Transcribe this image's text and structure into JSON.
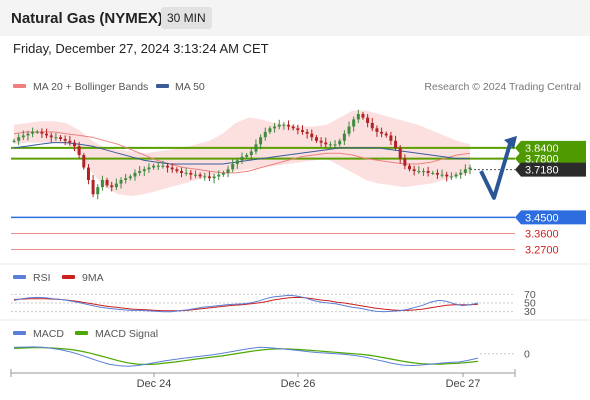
{
  "header": {
    "title": "Natural Gas (NYMEX)",
    "timeframe": "30 MIN",
    "datetime": "Friday, December 27, 2024 3:13:24 AM CET"
  },
  "legend": {
    "ma20_label": "MA 20 + Bollinger Bands",
    "ma50_label": "MA 50",
    "credit": "Research © 2024 Trading Central"
  },
  "colors": {
    "ma20": "#f08080",
    "band_fill": "#fcdada",
    "ma50": "#3a5b9a",
    "resistance": "#5a9e00",
    "support": "#2d6de0",
    "weak_support": "#e06060",
    "current": "#333333",
    "arrow": "#2a5596",
    "up_candle": "#3d8b3d",
    "down_candle": "#b22222",
    "rsi": "#5b7fd6",
    "rsi_ma": "#cc1f1f",
    "macd": "#5b7fd6",
    "macd_signal": "#4aa800"
  },
  "chart_data": [
    {
      "type": "candlestick",
      "x_ticks": [
        "Dec 24",
        "Dec 26",
        "Dec 27"
      ],
      "ylim": [
        3.2,
        4.12
      ],
      "levels": [
        {
          "label": "3.8400",
          "value": 3.84,
          "kind": "resistance"
        },
        {
          "label": "3.7800",
          "value": 3.78,
          "kind": "resistance"
        },
        {
          "label": "3.7180",
          "value": 3.718,
          "kind": "current"
        },
        {
          "label": "3.4500",
          "value": 3.45,
          "kind": "support"
        },
        {
          "label": "3.3600",
          "value": 3.36,
          "kind": "weak_support"
        },
        {
          "label": "3.2700",
          "value": 3.27,
          "kind": "weak_support"
        }
      ],
      "close": [
        3.88,
        3.9,
        3.91,
        3.92,
        3.93,
        3.93,
        3.92,
        3.91,
        3.9,
        3.9,
        3.89,
        3.88,
        3.87,
        3.85,
        3.8,
        3.73,
        3.66,
        3.58,
        3.62,
        3.66,
        3.63,
        3.62,
        3.64,
        3.66,
        3.67,
        3.68,
        3.7,
        3.71,
        3.72,
        3.73,
        3.74,
        3.74,
        3.74,
        3.73,
        3.72,
        3.71,
        3.7,
        3.7,
        3.69,
        3.69,
        3.68,
        3.68,
        3.67,
        3.68,
        3.69,
        3.7,
        3.72,
        3.75,
        3.77,
        3.79,
        3.8,
        3.82,
        3.86,
        3.9,
        3.93,
        3.95,
        3.96,
        3.97,
        3.97,
        3.96,
        3.95,
        3.94,
        3.93,
        3.92,
        3.9,
        3.88,
        3.87,
        3.86,
        3.86,
        3.86,
        3.88,
        3.92,
        3.96,
        4.0,
        4.03,
        4.01,
        3.98,
        3.95,
        3.93,
        3.92,
        3.91,
        3.88,
        3.84,
        3.78,
        3.74,
        3.72,
        3.71,
        3.71,
        3.71,
        3.7,
        3.7,
        3.69,
        3.69,
        3.68,
        3.68,
        3.69,
        3.7,
        3.72,
        3.73
      ],
      "ma20": [
        3.92,
        3.93,
        3.93,
        3.93,
        3.92,
        3.91,
        3.9,
        3.88,
        3.86,
        3.83,
        3.8,
        3.77,
        3.75,
        3.73,
        3.72,
        3.71,
        3.7,
        3.7,
        3.71,
        3.73,
        3.75,
        3.77,
        3.79,
        3.8,
        3.81,
        3.81,
        3.8,
        3.78,
        3.77,
        3.76,
        3.75,
        3.75,
        3.76,
        3.78,
        3.8,
        3.81
      ],
      "ma50": [
        3.84,
        3.85,
        3.86,
        3.87,
        3.87,
        3.86,
        3.85,
        3.83,
        3.81,
        3.79,
        3.77,
        3.76,
        3.75,
        3.75,
        3.75,
        3.75,
        3.75,
        3.76,
        3.77,
        3.78,
        3.79,
        3.8,
        3.81,
        3.82,
        3.83,
        3.84,
        3.84,
        3.84,
        3.84,
        3.83,
        3.82,
        3.81,
        3.8,
        3.79,
        3.78,
        3.78
      ],
      "bb_upper": [
        3.97,
        3.98,
        3.99,
        3.99,
        3.98,
        3.94,
        3.88,
        3.84,
        3.83,
        3.82,
        3.81,
        3.82,
        3.83,
        3.84,
        3.86,
        3.88,
        3.92,
        3.98,
        4.01,
        4.0,
        3.98,
        3.97,
        3.96,
        3.96,
        3.97,
        4.01,
        4.05,
        4.05,
        4.03,
        4.01,
        3.99,
        3.97,
        3.94,
        3.91,
        3.88,
        3.86
      ],
      "bb_lower": [
        3.86,
        3.87,
        3.87,
        3.87,
        3.86,
        3.8,
        3.7,
        3.62,
        3.58,
        3.57,
        3.58,
        3.6,
        3.62,
        3.64,
        3.66,
        3.68,
        3.7,
        3.71,
        3.72,
        3.73,
        3.74,
        3.75,
        3.76,
        3.77,
        3.78,
        3.74,
        3.7,
        3.66,
        3.64,
        3.63,
        3.62,
        3.63,
        3.64,
        3.66,
        3.68,
        3.7
      ]
    },
    {
      "type": "line",
      "legend": [
        "RSI",
        "9MA"
      ],
      "y_ticks": [
        "70",
        "50",
        "30"
      ],
      "ylim": [
        20,
        80
      ],
      "rsi": [
        56,
        60,
        62,
        63,
        62,
        60,
        58,
        55,
        52,
        48,
        44,
        40,
        38,
        36,
        34,
        33,
        33,
        32,
        31,
        30,
        30,
        32,
        34,
        37,
        40,
        42,
        44,
        46,
        47,
        48,
        50,
        54,
        60,
        64,
        66,
        68,
        66,
        62,
        56,
        52,
        50,
        48,
        44,
        40,
        38,
        34,
        31,
        30,
        31,
        32,
        35,
        40,
        45,
        52,
        56,
        54,
        48,
        44,
        46,
        50
      ],
      "rsi_ma": [
        58,
        59,
        60,
        60,
        60,
        59,
        58,
        56,
        54,
        51,
        48,
        45,
        42,
        40,
        38,
        36,
        35,
        34,
        33,
        32,
        32,
        32,
        33,
        35,
        37,
        39,
        41,
        43,
        45,
        46,
        48,
        50,
        53,
        57,
        60,
        62,
        63,
        62,
        60,
        57,
        55,
        52,
        50,
        47,
        44,
        41,
        38,
        36,
        34,
        33,
        33,
        34,
        36,
        39,
        42,
        45,
        46,
        46,
        46,
        47
      ]
    },
    {
      "type": "line",
      "legend": [
        "MACD",
        "MACD Signal"
      ],
      "y_ticks": [
        "0"
      ],
      "ylim": [
        -0.08,
        0.05
      ],
      "macd": [
        0.03,
        0.031,
        0.032,
        0.03,
        0.025,
        0.018,
        0.008,
        -0.005,
        -0.02,
        -0.035,
        -0.048,
        -0.055,
        -0.058,
        -0.055,
        -0.048,
        -0.04,
        -0.032,
        -0.026,
        -0.02,
        -0.015,
        -0.01,
        -0.005,
        0.002,
        0.01,
        0.018,
        0.025,
        0.03,
        0.028,
        0.024,
        0.02,
        0.015,
        0.01,
        0.006,
        0.003,
        0.0,
        -0.003,
        -0.008,
        -0.015,
        -0.025,
        -0.035,
        -0.045,
        -0.052,
        -0.055,
        -0.052,
        -0.048,
        -0.044,
        -0.04,
        -0.038,
        -0.03,
        -0.02
      ],
      "signal": [
        0.025,
        0.027,
        0.028,
        0.028,
        0.027,
        0.024,
        0.02,
        0.013,
        0.003,
        -0.008,
        -0.02,
        -0.032,
        -0.042,
        -0.048,
        -0.05,
        -0.048,
        -0.043,
        -0.038,
        -0.032,
        -0.026,
        -0.02,
        -0.015,
        -0.01,
        -0.003,
        0.004,
        0.011,
        0.017,
        0.021,
        0.023,
        0.022,
        0.02,
        0.017,
        0.014,
        0.01,
        0.007,
        0.003,
        0.0,
        -0.004,
        -0.01,
        -0.018,
        -0.026,
        -0.034,
        -0.041,
        -0.046,
        -0.048,
        -0.048,
        -0.046,
        -0.044,
        -0.04,
        -0.035
      ]
    }
  ]
}
